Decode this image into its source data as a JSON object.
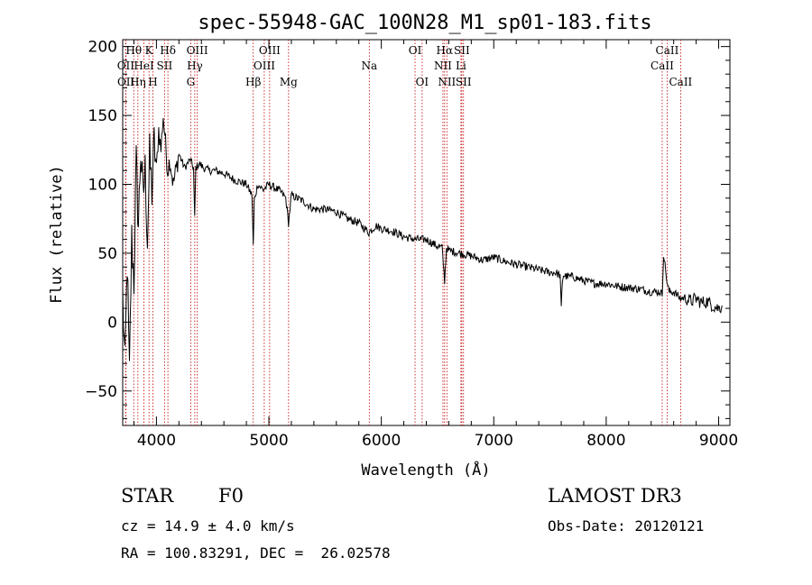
{
  "chart_data": {
    "type": "line",
    "title": "spec-55948-GAC_100N28_M1_sp01-183.fits",
    "xlabel": "Wavelength (Å)",
    "ylabel": "Flux (relative)",
    "xlim": [
      3700,
      9100
    ],
    "ylim": [
      -75,
      205
    ],
    "x_ticks": [
      4000,
      5000,
      6000,
      7000,
      8000,
      9000
    ],
    "x_tick_labels": [
      "4000",
      "5000",
      "6000",
      "7000",
      "8000",
      "9000"
    ],
    "y_ticks": [
      -50,
      0,
      50,
      100,
      150,
      200
    ],
    "y_tick_labels": [
      "−50",
      "0",
      "50",
      "100",
      "150",
      "200"
    ],
    "series": [
      {
        "name": "flux",
        "x": [
          3700,
          3720,
          3740,
          3760,
          3780,
          3800,
          3820,
          3840,
          3860,
          3880,
          3900,
          3920,
          3940,
          3960,
          3980,
          4000,
          4020,
          4040,
          4060,
          4080,
          4100,
          4120,
          4150,
          4200,
          4250,
          4300,
          4330,
          4340,
          4350,
          4380,
          4420,
          4470,
          4520,
          4600,
          4700,
          4800,
          4850,
          4861,
          4870,
          4900,
          4950,
          5000,
          5100,
          5150,
          5175,
          5200,
          5300,
          5400,
          5500,
          5600,
          5700,
          5800,
          5890,
          5950,
          6000,
          6100,
          6200,
          6300,
          6400,
          6500,
          6540,
          6563,
          6580,
          6600,
          6700,
          6800,
          6900,
          7000,
          7100,
          7200,
          7300,
          7400,
          7500,
          7550,
          7590,
          7600,
          7610,
          7620,
          7650,
          7700,
          7800,
          7900,
          8000,
          8100,
          8200,
          8300,
          8400,
          8450,
          8480,
          8498,
          8510,
          8542,
          8560,
          8600,
          8662,
          8700,
          8750,
          8800,
          8850,
          8900,
          8950,
          9000,
          9030
        ],
        "y": [
          20,
          -35,
          45,
          -40,
          60,
          30,
          115,
          70,
          125,
          90,
          110,
          60,
          120,
          95,
          130,
          110,
          140,
          125,
          150,
          130,
          110,
          118,
          100,
          122,
          112,
          118,
          112,
          75,
          112,
          115,
          112,
          110,
          110,
          108,
          103,
          100,
          92,
          55,
          88,
          100,
          96,
          100,
          95,
          90,
          72,
          92,
          88,
          82,
          82,
          80,
          75,
          72,
          65,
          70,
          68,
          66,
          62,
          60,
          60,
          55,
          54,
          30,
          54,
          52,
          50,
          48,
          45,
          47,
          44,
          42,
          40,
          38,
          36,
          36,
          34,
          10,
          30,
          34,
          33,
          33,
          30,
          28,
          28,
          26,
          25,
          24,
          22,
          22,
          22,
          20,
          50,
          28,
          22,
          22,
          17,
          18,
          15,
          17,
          14,
          15,
          12,
          10,
          12
        ]
      }
    ],
    "spectral_lines": [
      {
        "name": "OII",
        "wavelength": 3727,
        "row": 1
      },
      {
        "name": "OII",
        "wavelength": 3729,
        "row": 2
      },
      {
        "name": "Hθ",
        "wavelength": 3798,
        "row": 0
      },
      {
        "name": "Hη",
        "wavelength": 3835,
        "row": 2
      },
      {
        "name": "HeI",
        "wavelength": 3889,
        "row": 1
      },
      {
        "name": "K",
        "wavelength": 3934,
        "row": 0
      },
      {
        "name": "H",
        "wavelength": 3969,
        "row": 2
      },
      {
        "name": "SII",
        "wavelength": 4072,
        "row": 1
      },
      {
        "name": "Hδ",
        "wavelength": 4102,
        "row": 0
      },
      {
        "name": "G",
        "wavelength": 4305,
        "row": 2
      },
      {
        "name": "Hγ",
        "wavelength": 4341,
        "row": 1
      },
      {
        "name": "OIII",
        "wavelength": 4363,
        "row": 0
      },
      {
        "name": "Hβ",
        "wavelength": 4861,
        "row": 2
      },
      {
        "name": "OIII",
        "wavelength": 4959,
        "row": 1
      },
      {
        "name": "OIII",
        "wavelength": 5007,
        "row": 0
      },
      {
        "name": "Mg",
        "wavelength": 5175,
        "row": 2
      },
      {
        "name": "Na",
        "wavelength": 5893,
        "row": 1
      },
      {
        "name": "OI",
        "wavelength": 6300,
        "row": 0
      },
      {
        "name": "OI",
        "wavelength": 6363,
        "row": 2
      },
      {
        "name": "NII",
        "wavelength": 6548,
        "row": 1
      },
      {
        "name": "Hα",
        "wavelength": 6563,
        "row": 0
      },
      {
        "name": "NII",
        "wavelength": 6583,
        "row": 2
      },
      {
        "name": "Li",
        "wavelength": 6708,
        "row": 1
      },
      {
        "name": "SII",
        "wavelength": 6716,
        "row": 0
      },
      {
        "name": "SII",
        "wavelength": 6731,
        "row": 2
      },
      {
        "name": "CaII",
        "wavelength": 8498,
        "row": 1
      },
      {
        "name": "CaII",
        "wavelength": 8542,
        "row": 0
      },
      {
        "name": "CaII",
        "wavelength": 8662,
        "row": 2
      }
    ]
  },
  "footer": {
    "object_class": "STAR",
    "subclass": "F0",
    "survey": "LAMOST DR3",
    "redshift": "cz = 14.9 ± 4.0 km/s",
    "obs_date": "Obs-Date: 20120121",
    "coords": "RA = 100.83291, DEC =  26.02578"
  }
}
